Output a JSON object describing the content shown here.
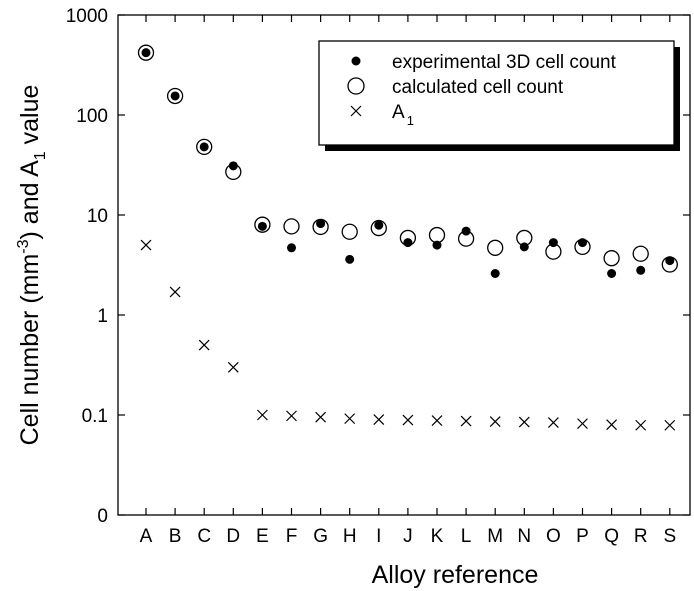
{
  "chart_data": {
    "type": "scatter",
    "xlabel": "Alloy reference",
    "ylabel_main": "Cell number (mm",
    "ylabel_exp": "-3",
    "ylabel_mid": ") and A",
    "ylabel_sub": "1",
    "ylabel_end": " value",
    "yscale": "log",
    "ylim": [
      0.01,
      1000
    ],
    "y_ticks": [
      {
        "value": 0.01,
        "label": "0"
      },
      {
        "value": 0.1,
        "label": "0.1"
      },
      {
        "value": 1,
        "label": "1"
      },
      {
        "value": 10,
        "label": "10"
      },
      {
        "value": 100,
        "label": "100"
      },
      {
        "value": 1000,
        "label": "1000"
      }
    ],
    "categories": [
      "A",
      "B",
      "C",
      "D",
      "E",
      "F",
      "G",
      "H",
      "I",
      "J",
      "K",
      "L",
      "M",
      "N",
      "O",
      "P",
      "Q",
      "R",
      "S"
    ],
    "legend_position": "top-right",
    "grid": false,
    "series": [
      {
        "name": "experimental 3D cell count",
        "marker": "filled-circle",
        "values": [
          420,
          155,
          48,
          31,
          7.7,
          4.7,
          8.2,
          3.6,
          7.9,
          5.3,
          5.0,
          6.9,
          2.6,
          4.8,
          5.3,
          5.3,
          2.6,
          2.8,
          3.5
        ]
      },
      {
        "name": "calculated cell count",
        "marker": "open-circle",
        "values": [
          420,
          155,
          48,
          27,
          8.0,
          7.7,
          7.6,
          6.8,
          7.4,
          5.9,
          6.3,
          5.8,
          4.7,
          5.9,
          4.3,
          4.8,
          3.7,
          4.1,
          3.2
        ]
      },
      {
        "name": "A",
        "name_sub": "1",
        "marker": "cross",
        "values": [
          5.0,
          1.7,
          0.5,
          0.3,
          0.1,
          0.098,
          0.095,
          0.092,
          0.09,
          0.089,
          0.088,
          0.087,
          0.086,
          0.085,
          0.084,
          0.082,
          0.08,
          0.079,
          0.079
        ]
      }
    ]
  }
}
